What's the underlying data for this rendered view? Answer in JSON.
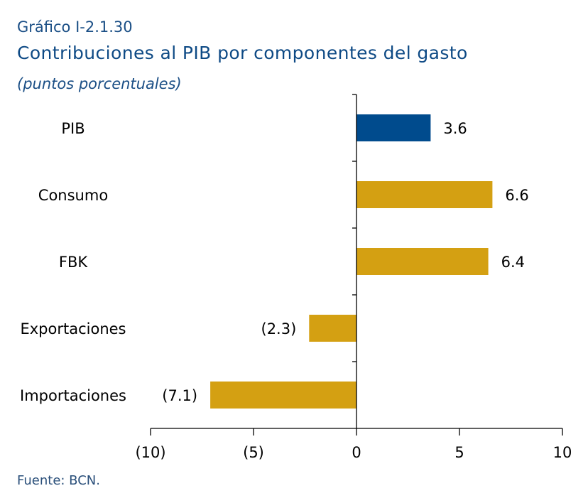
{
  "figure": {
    "label": "Gráfico I-2.1.30",
    "title": "Contribuciones al PIB por componentes del gasto",
    "subtitle": "(puntos porcentuales)",
    "source": "Fuente: BCN."
  },
  "colors": {
    "highlight": "#004b8d",
    "default": "#d4a012",
    "axis": "#000000",
    "text": "#000000"
  },
  "chart_data": {
    "type": "bar",
    "orientation": "horizontal",
    "categories": [
      "PIB",
      "Consumo",
      "FBK",
      "Exportaciones",
      "Importaciones"
    ],
    "values": [
      3.6,
      6.6,
      6.4,
      -2.3,
      -7.1
    ],
    "value_labels": [
      "3.6",
      "6.6",
      "6.4",
      "(2.3)",
      "(7.1)"
    ],
    "highlight_index": 0,
    "xlim": [
      -10,
      10
    ],
    "xticks": [
      -10,
      -5,
      0,
      5,
      10
    ],
    "xtick_labels": [
      "(10)",
      "(5)",
      "0",
      "5",
      "10"
    ],
    "grid": false,
    "legend": "none"
  }
}
